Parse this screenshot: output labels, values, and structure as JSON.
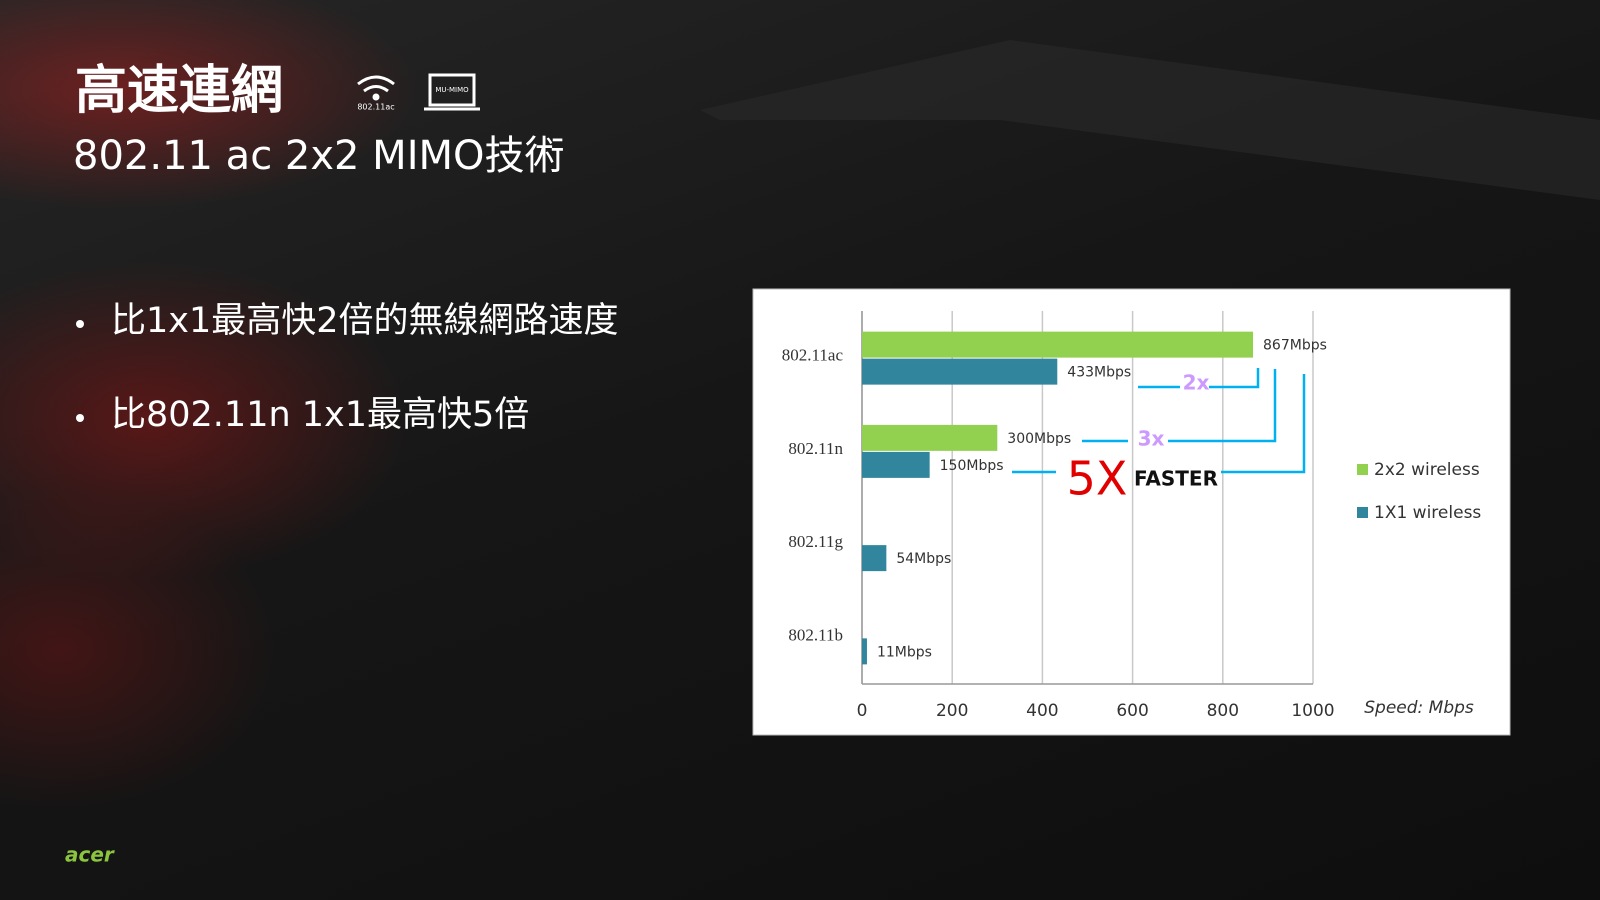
{
  "slide": {
    "title": "高速連網",
    "icon_labels": [
      "802.11ac",
      "MU-MIMO"
    ],
    "subtitle": "802.11 ac 2x2 MIMO技術",
    "bullets": [
      "比1x1最高快2倍的無線網路速度",
      "比802.11n 1x1最高快5倍"
    ],
    "logo": "acer"
  },
  "chart_data": {
    "type": "barh",
    "categories": [
      "802.11ac",
      "802.11n",
      "802.11g",
      "802.11b"
    ],
    "series": [
      {
        "name": "2x2 wireless",
        "color": "#92d050",
        "values": [
          867,
          300,
          null,
          null
        ],
        "value_labels": [
          "867Mbps",
          "300Mbps",
          null,
          null
        ]
      },
      {
        "name": "1X1 wireless",
        "color": "#31859c",
        "values": [
          433,
          150,
          54,
          11
        ],
        "value_labels": [
          "433Mbps",
          "150Mbps",
          "54Mbps",
          "11Mbps"
        ]
      }
    ],
    "xlim": [
      0,
      1000
    ],
    "xticks": [
      0,
      200,
      400,
      600,
      800,
      1000
    ],
    "x_label": "Speed: Mbps",
    "grid": true,
    "legend": "right",
    "annotations": [
      "2x",
      "3x",
      "5X",
      "FASTER"
    ]
  }
}
